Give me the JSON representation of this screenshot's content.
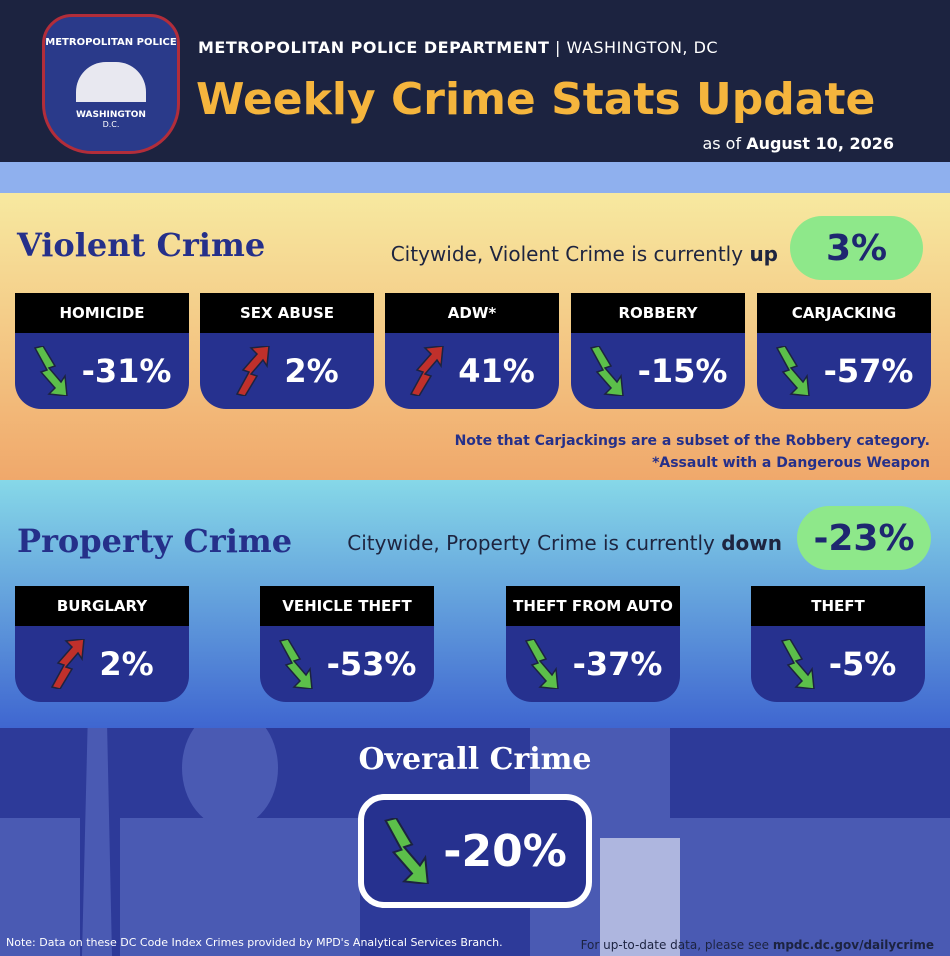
{
  "header": {
    "logo_top": "METROPOLITAN POLICE",
    "logo_bottom": "WASHINGTON",
    "logo_sub": "D.C.",
    "org": "METROPOLITAN POLICE DEPARTMENT",
    "separator": "|",
    "location": "WASHINGTON, DC",
    "title": "Weekly Crime Stats Update",
    "date_prefix": "as of",
    "date": "August 10, 2026"
  },
  "violent": {
    "title": "Violent Crime",
    "summary_prefix": "Citywide, Violent Crime is currently",
    "direction": "up",
    "change": "3%",
    "cards": [
      {
        "label": "HOMICIDE",
        "change": "-31%"
      },
      {
        "label": "SEX ABUSE",
        "change": "2%"
      },
      {
        "label": "ADW*",
        "change": "41%"
      },
      {
        "label": "ROBBERY",
        "change": "-15%"
      },
      {
        "label": "CARJACKING",
        "change": "-57%"
      }
    ],
    "notes": [
      "Note that Carjackings are a subset of the Robbery category.",
      "*Assault with a Dangerous Weapon"
    ]
  },
  "property": {
    "title": "Property Crime",
    "summary_prefix": "Citywide, Property Crime is currently",
    "direction": "down",
    "change": "-23%",
    "cards": [
      {
        "label": "BURGLARY",
        "change": "2%"
      },
      {
        "label": "VEHICLE THEFT",
        "change": "-53%"
      },
      {
        "label": "THEFT FROM AUTO",
        "change": "-37%"
      },
      {
        "label": "THEFT",
        "change": "-5%"
      }
    ]
  },
  "overall": {
    "title": "Overall Crime",
    "change": "-20%"
  },
  "footer": {
    "note": "Note: Data on these DC Code Index Crimes provided by MPD's Analytical Services Branch.",
    "link_prefix": "For up-to-date data, please see",
    "link": "mpdc.dc.gov/dailycrime"
  }
}
